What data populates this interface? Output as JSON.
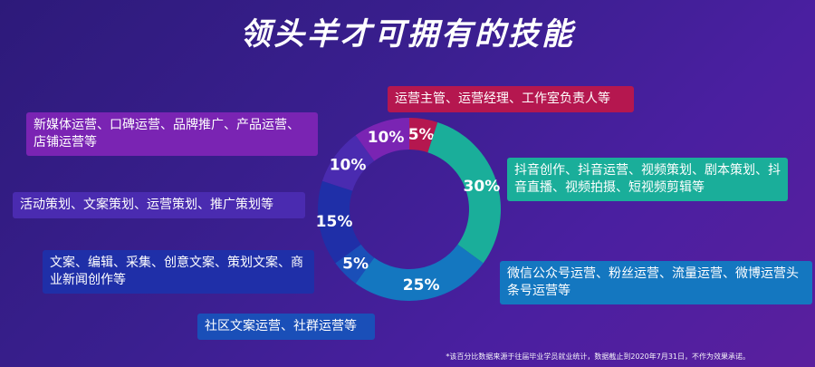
{
  "title": "领头羊才可拥有的技能",
  "chart_data": {
    "type": "pie",
    "categories": [
      "运营主管、运营经理、工作室负责人等",
      "抖音创作、抖音运营、视频策划、剧本策划、抖音直播、视频拍摄、短视频剪辑等",
      "微信公众号运营、粉丝运营、流量运营、微博运营头条号运营等",
      "社区文案运营、社群运营等",
      "文案、编辑、采集、创意文案、策划文案、商业新闻创作等",
      "活动策划、文案策划、运营策划、推广策划等",
      "新媒体运营、口碑运营、品牌推广、产品运营、店铺运营等"
    ],
    "values": [
      5,
      30,
      25,
      5,
      15,
      10,
      10
    ],
    "value_labels": [
      "5%",
      "30%",
      "25%",
      "5%",
      "15%",
      "10%",
      "10%"
    ],
    "colors": [
      "#b5174f",
      "#1aae9a",
      "#1477c0",
      "#1a4fb8",
      "#1f2fa8",
      "#4a2bb0",
      "#7a24b3"
    ]
  },
  "footnote": "*该百分比数据来源于往届毕业学员就业统计，数据截止到2020年7月31日，不作为效果承诺。"
}
